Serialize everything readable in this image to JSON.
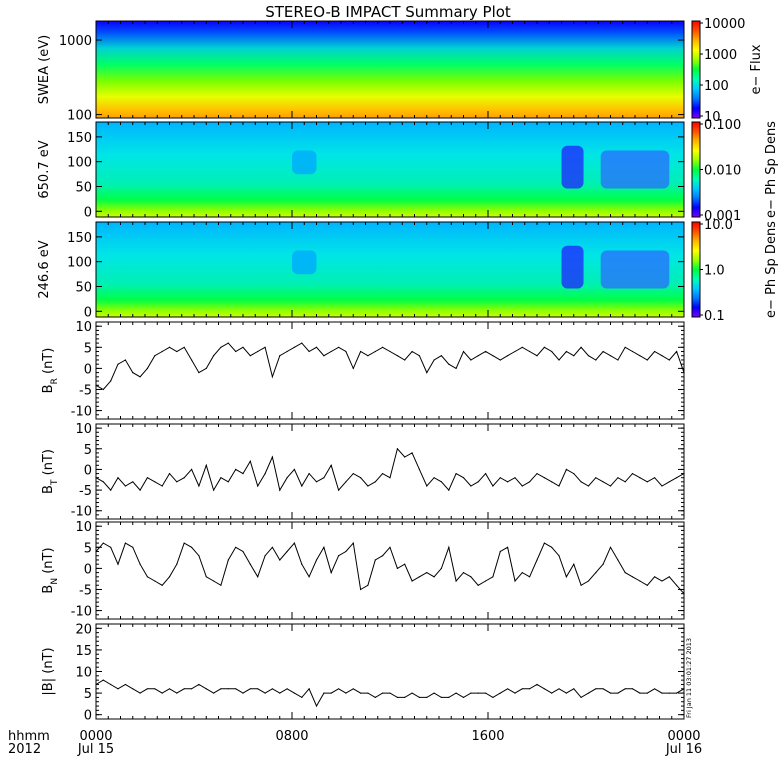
{
  "title": "STEREO-B IMPACT Summary Plot",
  "stamp": "Fri Jan 11 03:01:27 2013",
  "time_axis": {
    "row1_label": "hhmm",
    "row2_label": "2012",
    "ticks": [
      {
        "t": 0,
        "label": "0000",
        "sub": "Jul 15"
      },
      {
        "t": 8,
        "label": "0800",
        "sub": ""
      },
      {
        "t": 16,
        "label": "1600",
        "sub": ""
      },
      {
        "t": 24,
        "label": "0000",
        "sub": "Jul 16"
      }
    ],
    "range_hours": [
      0,
      24
    ]
  },
  "colors": {
    "colormap": [
      "#7a00ff",
      "#0000ff",
      "#0078ff",
      "#00c8ff",
      "#00ffb4",
      "#00ff3c",
      "#9cff00",
      "#ffff00",
      "#ffb400",
      "#ff5000",
      "#ff0000"
    ]
  },
  "chart_data": [
    {
      "type": "heatmap",
      "ylabel": "SWEA (eV)",
      "scale": "log",
      "yticks": [
        {
          "v": 1000,
          "label": "1000"
        },
        {
          "v": 100,
          "label": "100"
        }
      ],
      "cbar_label": "e− Flux",
      "cbar_scale": "log",
      "cbar_ticks": [
        {
          "v": 10000,
          "label": "10000"
        },
        {
          "v": 1000,
          "label": "1000"
        },
        {
          "v": 100,
          "label": "100"
        },
        {
          "v": 10,
          "label": "10"
        }
      ]
    },
    {
      "type": "heatmap",
      "ylabel": "650.7 eV",
      "scale": "linear",
      "yticks": [
        {
          "v": 150,
          "label": "150"
        },
        {
          "v": 100,
          "label": "100"
        },
        {
          "v": 50,
          "label": "50"
        },
        {
          "v": 0,
          "label": "0"
        }
      ],
      "cbar_label": "e− Ph Sp Dens",
      "cbar_scale": "log",
      "cbar_ticks": [
        {
          "v": 0.1,
          "label": "0.100"
        },
        {
          "v": 0.01,
          "label": "0.010"
        },
        {
          "v": 0.001,
          "label": "0.001"
        }
      ]
    },
    {
      "type": "heatmap",
      "ylabel": "246.6 eV",
      "scale": "linear",
      "yticks": [
        {
          "v": 150,
          "label": "150"
        },
        {
          "v": 100,
          "label": "100"
        },
        {
          "v": 50,
          "label": "50"
        },
        {
          "v": 0,
          "label": "0"
        }
      ],
      "cbar_label": "e− Ph Sp Dens",
      "cbar_scale": "log",
      "cbar_ticks": [
        {
          "v": 10,
          "label": "10.0"
        },
        {
          "v": 1,
          "label": "1.0"
        },
        {
          "v": 0.1,
          "label": "0.1"
        }
      ]
    },
    {
      "type": "line",
      "ylabel": "B",
      "ylabel_sub": "R",
      "ylabel_unit": "(nT)",
      "ylim": [
        -12,
        11
      ],
      "yticks": [
        10,
        5,
        0,
        -5,
        -10
      ],
      "series": [
        {
          "x": [
            0,
            0.3,
            0.6,
            0.9,
            1.2,
            1.5,
            1.8,
            2.1,
            2.4,
            2.7,
            3.0,
            3.3,
            3.6,
            3.9,
            4.2,
            4.5,
            4.8,
            5.1,
            5.4,
            5.7,
            6.0,
            6.3,
            6.6,
            6.9,
            7.2,
            7.5,
            7.8,
            8.1,
            8.4,
            8.7,
            9.0,
            9.3,
            9.6,
            9.9,
            10.2,
            10.5,
            10.8,
            11.1,
            11.4,
            11.7,
            12.0,
            12.3,
            12.6,
            12.9,
            13.2,
            13.5,
            13.8,
            14.1,
            14.4,
            14.7,
            15.0,
            15.3,
            15.6,
            15.9,
            16.2,
            16.5,
            16.8,
            17.1,
            17.4,
            17.7,
            18.0,
            18.3,
            18.6,
            18.9,
            19.2,
            19.5,
            19.8,
            20.1,
            20.4,
            20.7,
            21.0,
            21.3,
            21.6,
            21.9,
            22.2,
            22.5,
            22.8,
            23.1,
            23.4,
            23.7,
            24.0
          ],
          "y": [
            -4,
            -5,
            -3,
            1,
            2,
            -1,
            -2,
            0,
            3,
            4,
            5,
            4,
            5,
            2,
            -1,
            0,
            3,
            5,
            6,
            4,
            5,
            3,
            4,
            5,
            -2,
            3,
            4,
            5,
            6,
            4,
            5,
            3,
            4,
            5,
            4,
            0,
            4,
            3,
            4,
            5,
            4,
            3,
            2,
            4,
            3,
            -1,
            2,
            3,
            1,
            0,
            4,
            2,
            3,
            4,
            3,
            2,
            3,
            4,
            5,
            4,
            3,
            5,
            4,
            2,
            4,
            3,
            5,
            3,
            2,
            4,
            3,
            2,
            5,
            4,
            3,
            2,
            4,
            3,
            2,
            4,
            -1
          ]
        }
      ]
    },
    {
      "type": "line",
      "ylabel": "B",
      "ylabel_sub": "T",
      "ylabel_unit": "(nT)",
      "ylim": [
        -12,
        11
      ],
      "yticks": [
        10,
        5,
        0,
        -5,
        -10
      ],
      "series": [
        {
          "x": [
            0,
            0.3,
            0.6,
            0.9,
            1.2,
            1.5,
            1.8,
            2.1,
            2.4,
            2.7,
            3.0,
            3.3,
            3.6,
            3.9,
            4.2,
            4.5,
            4.8,
            5.1,
            5.4,
            5.7,
            6.0,
            6.3,
            6.6,
            6.9,
            7.2,
            7.5,
            7.8,
            8.1,
            8.4,
            8.7,
            9.0,
            9.3,
            9.6,
            9.9,
            10.2,
            10.5,
            10.8,
            11.1,
            11.4,
            11.7,
            12.0,
            12.3,
            12.6,
            12.9,
            13.2,
            13.5,
            13.8,
            14.1,
            14.4,
            14.7,
            15.0,
            15.3,
            15.6,
            15.9,
            16.2,
            16.5,
            16.8,
            17.1,
            17.4,
            17.7,
            18.0,
            18.3,
            18.6,
            18.9,
            19.2,
            19.5,
            19.8,
            20.1,
            20.4,
            20.7,
            21.0,
            21.3,
            21.6,
            21.9,
            22.2,
            22.5,
            22.8,
            23.1,
            23.4,
            23.7,
            24.0
          ],
          "y": [
            -2,
            -3,
            -5,
            -2,
            -4,
            -3,
            -5,
            -2,
            -3,
            -4,
            -1,
            -3,
            -2,
            0,
            -4,
            1,
            -5,
            -2,
            -3,
            0,
            -1,
            2,
            -4,
            -1,
            3,
            -5,
            -2,
            0,
            -4,
            -1,
            -3,
            -2,
            1,
            -5,
            -3,
            -1,
            -2,
            -4,
            -3,
            -1,
            -2,
            5,
            3,
            4,
            0,
            -4,
            -2,
            -3,
            -5,
            -1,
            -2,
            -4,
            -3,
            -1,
            -4,
            -2,
            -3,
            -2,
            -4,
            -3,
            -1,
            -2,
            -3,
            -4,
            0,
            -1,
            -3,
            -4,
            -2,
            -3,
            -4,
            -2,
            -3,
            -1,
            -2,
            -3,
            -2,
            -4,
            -3,
            -2,
            -1
          ]
        }
      ]
    },
    {
      "type": "line",
      "ylabel": "B",
      "ylabel_sub": "N",
      "ylabel_unit": "(nT)",
      "ylim": [
        -12,
        11
      ],
      "yticks": [
        10,
        5,
        0,
        -5,
        -10
      ],
      "series": [
        {
          "x": [
            0,
            0.3,
            0.6,
            0.9,
            1.2,
            1.5,
            1.8,
            2.1,
            2.4,
            2.7,
            3.0,
            3.3,
            3.6,
            3.9,
            4.2,
            4.5,
            4.8,
            5.1,
            5.4,
            5.7,
            6.0,
            6.3,
            6.6,
            6.9,
            7.2,
            7.5,
            7.8,
            8.1,
            8.4,
            8.7,
            9.0,
            9.3,
            9.6,
            9.9,
            10.2,
            10.5,
            10.8,
            11.1,
            11.4,
            11.7,
            12.0,
            12.3,
            12.6,
            12.9,
            13.2,
            13.5,
            13.8,
            14.1,
            14.4,
            14.7,
            15.0,
            15.3,
            15.6,
            15.9,
            16.2,
            16.5,
            16.8,
            17.1,
            17.4,
            17.7,
            18.0,
            18.3,
            18.6,
            18.9,
            19.2,
            19.5,
            19.8,
            20.1,
            20.4,
            20.7,
            21.0,
            21.3,
            21.6,
            21.9,
            22.2,
            22.5,
            22.8,
            23.1,
            23.4,
            23.7,
            24.0
          ],
          "y": [
            4,
            6,
            5,
            1,
            6,
            5,
            1,
            -2,
            -3,
            -4,
            -2,
            1,
            6,
            5,
            3,
            -2,
            -3,
            -4,
            2,
            5,
            4,
            1,
            -2,
            3,
            5,
            2,
            4,
            6,
            1,
            -2,
            2,
            5,
            -1,
            3,
            4,
            6,
            -5,
            -4,
            2,
            3,
            5,
            0,
            1,
            -3,
            -2,
            -1,
            -2,
            0,
            5,
            -3,
            -1,
            -2,
            -4,
            -3,
            -2,
            4,
            5,
            -3,
            -1,
            -2,
            2,
            6,
            5,
            3,
            -2,
            1,
            -4,
            -3,
            -1,
            1,
            5,
            2,
            -1,
            -2,
            -3,
            -4,
            -2,
            -3,
            -2,
            -4,
            -6
          ]
        }
      ]
    },
    {
      "type": "line",
      "ylabel": "|B|",
      "ylabel_sub": "",
      "ylabel_unit": "(nT)",
      "ylim": [
        -1,
        21
      ],
      "yticks": [
        20,
        15,
        10,
        5,
        0
      ],
      "series": [
        {
          "x": [
            0,
            0.3,
            0.6,
            0.9,
            1.2,
            1.5,
            1.8,
            2.1,
            2.4,
            2.7,
            3.0,
            3.3,
            3.6,
            3.9,
            4.2,
            4.5,
            4.8,
            5.1,
            5.4,
            5.7,
            6.0,
            6.3,
            6.6,
            6.9,
            7.2,
            7.5,
            7.8,
            8.1,
            8.4,
            8.7,
            9.0,
            9.3,
            9.6,
            9.9,
            10.2,
            10.5,
            10.8,
            11.1,
            11.4,
            11.7,
            12.0,
            12.3,
            12.6,
            12.9,
            13.2,
            13.5,
            13.8,
            14.1,
            14.4,
            14.7,
            15.0,
            15.3,
            15.6,
            15.9,
            16.2,
            16.5,
            16.8,
            17.1,
            17.4,
            17.7,
            18.0,
            18.3,
            18.6,
            18.9,
            19.2,
            19.5,
            19.8,
            20.1,
            20.4,
            20.7,
            21.0,
            21.3,
            21.6,
            21.9,
            22.2,
            22.5,
            22.8,
            23.1,
            23.4,
            23.7,
            24.0
          ],
          "y": [
            7,
            8,
            7,
            6,
            7,
            6,
            5,
            6,
            6,
            5,
            6,
            5,
            6,
            6,
            7,
            6,
            5,
            6,
            6,
            6,
            5,
            6,
            6,
            5,
            6,
            5,
            6,
            5,
            4,
            6,
            2,
            5,
            5,
            6,
            5,
            6,
            5,
            5,
            4,
            5,
            5,
            4,
            4,
            5,
            4,
            4,
            5,
            4,
            4,
            5,
            4,
            5,
            5,
            5,
            4,
            5,
            6,
            5,
            6,
            6,
            7,
            6,
            5,
            6,
            5,
            6,
            4,
            5,
            6,
            6,
            5,
            5,
            6,
            6,
            5,
            5,
            6,
            5,
            5,
            5,
            6
          ]
        }
      ]
    }
  ]
}
